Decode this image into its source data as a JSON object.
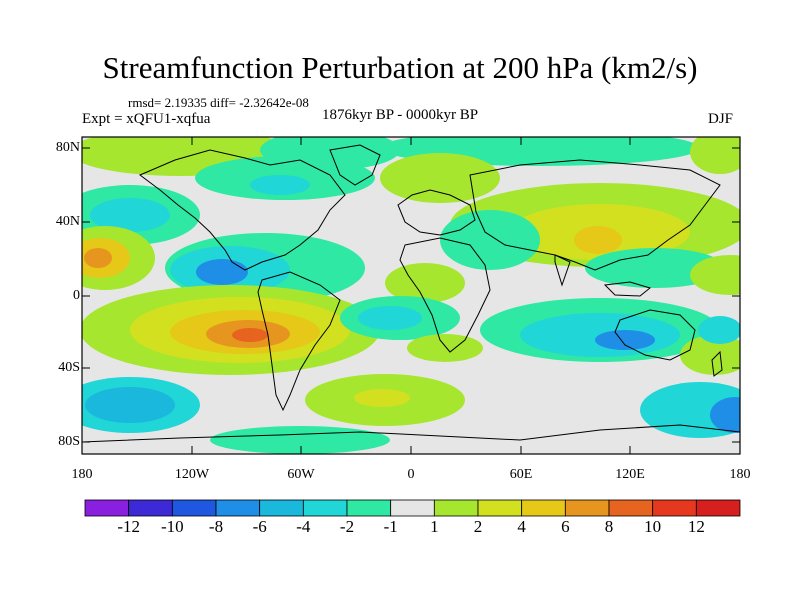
{
  "title": "Streamfunction Perturbation at 200 hPa (km2/s)",
  "stats_line": "rmsd= 2.19335 diff= -2.32642e-08",
  "experiment": "Expt = xQFU1-xqfua",
  "period": "1876kyr BP - 0000kyr BP",
  "season": "DJF",
  "lat_labels": [
    "80N",
    "40N",
    "0",
    "40S",
    "80S"
  ],
  "lon_labels": [
    "180",
    "120W",
    "60W",
    "0",
    "60E",
    "120E",
    "180"
  ],
  "colorbar": {
    "labels": [
      "-12",
      "-10",
      "-8",
      "-6",
      "-4",
      "-2",
      "-1",
      "1",
      "2",
      "4",
      "6",
      "8",
      "10",
      "12"
    ],
    "colors": [
      "#8a1fe0",
      "#3d2ad6",
      "#1f57e0",
      "#1f8ee6",
      "#19b8dc",
      "#21d6d6",
      "#2ee8a4",
      "#e6e6e6",
      "#a6e62e",
      "#d2e01f",
      "#e6c819",
      "#e6961f",
      "#e6641f",
      "#e6371f",
      "#d61f1f"
    ]
  },
  "map_colors": {
    "background": "#e6e6e6",
    "coast": "#000000"
  }
}
